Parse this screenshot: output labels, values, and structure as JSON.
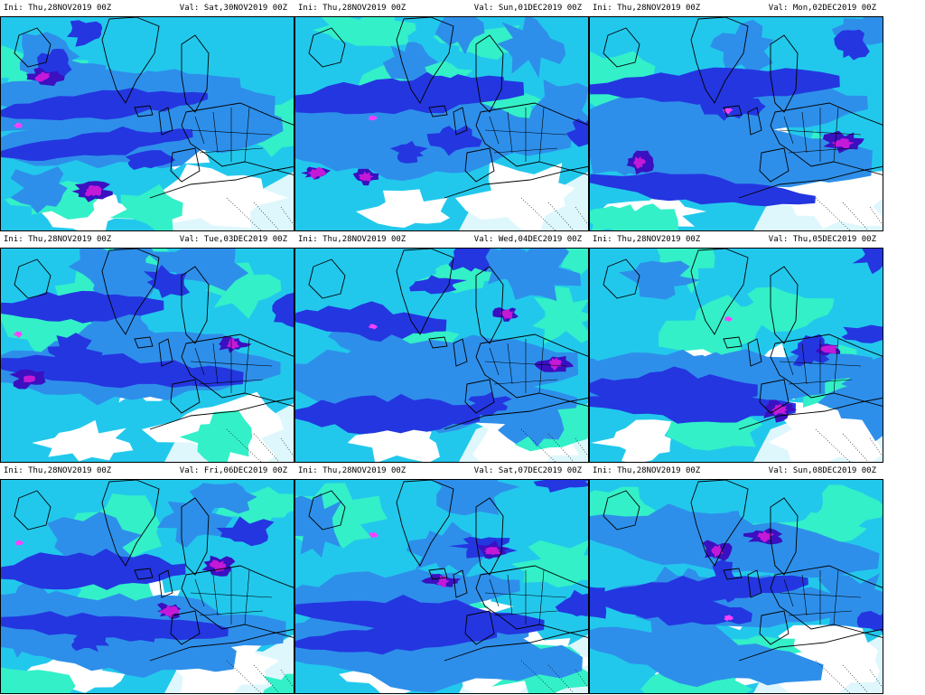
{
  "panels": [
    {
      "ini": "Ini: Thu,28NOV2019  00Z",
      "val": "Val: Sat,30NOV2019  00Z"
    },
    {
      "ini": "Ini: Thu,28NOV2019  00Z",
      "val": "Val: Sun,01DEC2019  00Z"
    },
    {
      "ini": "Ini: Thu,28NOV2019  00Z",
      "val": "Val: Mon,02DEC2019  00Z"
    },
    {
      "ini": "Ini: Thu,28NOV2019  00Z",
      "val": "Val: Tue,03DEC2019  00Z"
    },
    {
      "ini": "Ini: Thu,28NOV2019  00Z",
      "val": "Val: Wed,04DEC2019  00Z"
    },
    {
      "ini": "Ini: Thu,28NOV2019  00Z",
      "val": "Val: Thu,05DEC2019  00Z"
    },
    {
      "ini": "Ini: Thu,28NOV2019  00Z",
      "val": "Val: Fri,06DEC2019  00Z"
    },
    {
      "ini": "Ini: Thu,28NOV2019  00Z",
      "val": "Val: Sat,07DEC2019  00Z"
    },
    {
      "ini": "Ini: Thu,28NOV2019  00Z",
      "val": "Val: Sun,08DEC2019  00Z"
    }
  ],
  "colors": {
    "clear": "#ffffff",
    "low": "#33f0c8",
    "light": "#22c8ec",
    "moderate": "#2e8fea",
    "heavy": "#2436e0",
    "very_heavy": "#3a10c0",
    "extreme": "#c41ad8",
    "peak": "#ff40ff",
    "coastline": "#000000"
  }
}
